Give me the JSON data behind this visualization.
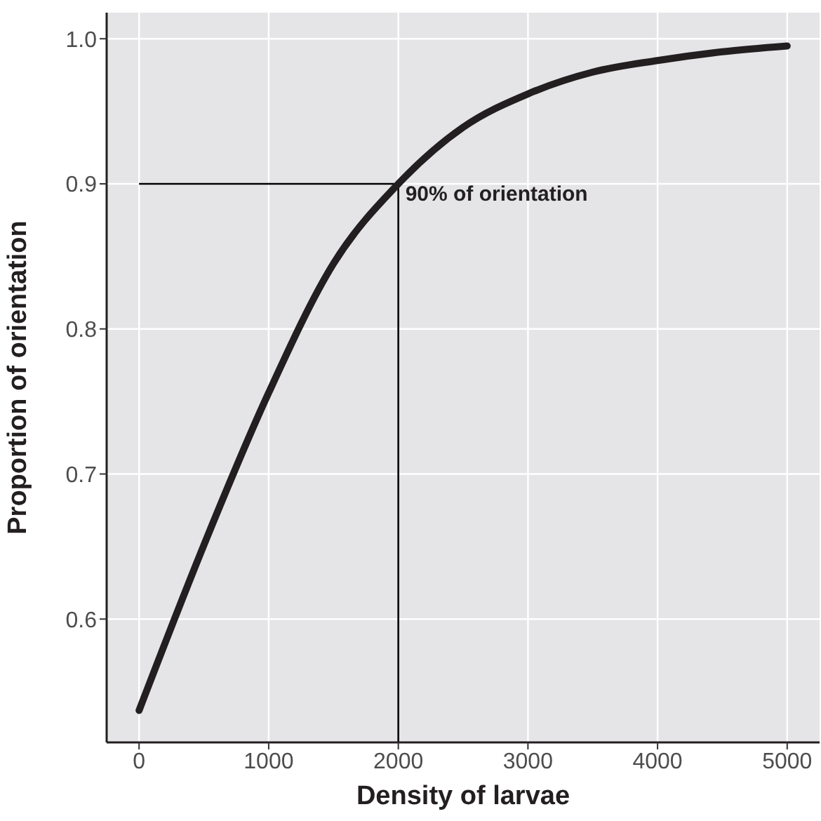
{
  "chart_data": {
    "type": "line",
    "xlabel": "Density of larvae",
    "ylabel": "Proportion of orientation",
    "x": [
      0,
      500,
      1000,
      1500,
      2000,
      2500,
      3000,
      3500,
      4000,
      4500,
      5000
    ],
    "series": [
      {
        "color": "#231f20",
        "values": [
          0.537,
          0.651,
          0.756,
          0.845,
          0.9,
          0.939,
          0.962,
          0.977,
          0.985,
          0.991,
          0.995
        ]
      }
    ],
    "xlim": [
      -250,
      5250
    ],
    "xticks": [
      0,
      1000,
      2000,
      3000,
      4000,
      5000
    ],
    "ylim": [
      0.515,
      1.018
    ],
    "yticks": [
      0.6,
      0.7,
      0.8,
      0.9,
      {
        "value": 1,
        "label": "1.0"
      }
    ],
    "grid": true,
    "marker": "none",
    "line_style": "solid",
    "ref_lines": [
      {
        "axis": "y",
        "value": 0.9,
        "label": "90% of orientation",
        "color": "#000000"
      },
      {
        "axis": "x",
        "value": 2000,
        "color": "#000000"
      }
    ]
  }
}
